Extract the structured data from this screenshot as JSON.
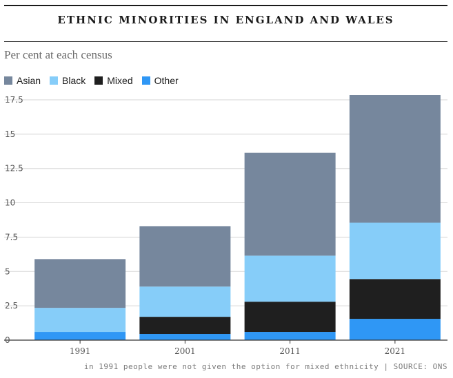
{
  "header": {
    "title": "ETHNIC MINORITIES IN ENGLAND AND WALES",
    "subtitle": "Per cent at each census"
  },
  "footnote": "in 1991 people were not given the option for mixed ethnicity | SOURCE: ONS",
  "chart_data": {
    "type": "bar",
    "stacked": true,
    "categories": [
      "1991",
      "2001",
      "2011",
      "2021"
    ],
    "series": [
      {
        "name": "Other",
        "color": "#2f97f5",
        "values": [
          0.6,
          0.45,
          0.6,
          1.55
        ]
      },
      {
        "name": "Mixed",
        "color": "#1f1f1f",
        "values": [
          0,
          1.25,
          2.2,
          2.9
        ]
      },
      {
        "name": "Black",
        "color": "#86cdf9",
        "values": [
          1.75,
          2.2,
          3.35,
          4.1
        ]
      },
      {
        "name": "Asian",
        "color": "#76879d",
        "values": [
          3.55,
          4.4,
          7.5,
          9.3
        ]
      }
    ],
    "legend_order": [
      "Asian",
      "Black",
      "Mixed",
      "Other"
    ],
    "y_ticks": [
      "2.5",
      "5",
      "7.5",
      "10",
      "12.5",
      "15",
      "17.5"
    ],
    "ylim": [
      0,
      17.8
    ],
    "grid": true,
    "legend_position": "top-left"
  }
}
